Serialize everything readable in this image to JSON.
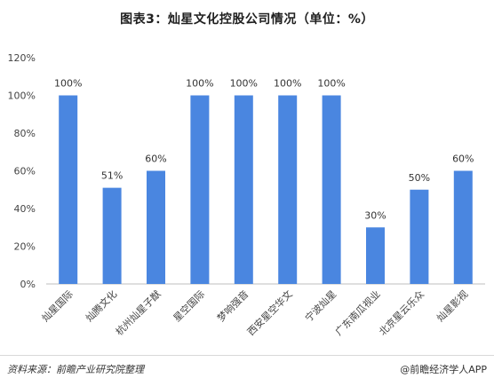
{
  "chart_data": {
    "type": "bar",
    "title": "图表3：灿星文化控股公司情况（单位：%）",
    "categories": [
      "灿星国际",
      "灿腾文化",
      "杭州灿星子猷",
      "星空国际",
      "梦响强音",
      "西安星空华文",
      "宁波灿星",
      "广东南瓜视业",
      "北京星云乐众",
      "灿星影视"
    ],
    "values": [
      100,
      51,
      60,
      100,
      100,
      100,
      100,
      30,
      50,
      60
    ],
    "value_labels": [
      "100%",
      "51%",
      "60%",
      "100%",
      "100%",
      "100%",
      "100%",
      "30%",
      "50%",
      "60%"
    ],
    "ylim": [
      0,
      120
    ],
    "yticks": [
      "0%",
      "20%",
      "40%",
      "60%",
      "80%",
      "100%",
      "120%"
    ],
    "grid": false,
    "bar_color": "#4a86e0",
    "xlabel": "",
    "ylabel": ""
  },
  "footer": {
    "source": "资料来源：前瞻产业研究院整理",
    "brand": "@前瞻经济学人APP"
  }
}
